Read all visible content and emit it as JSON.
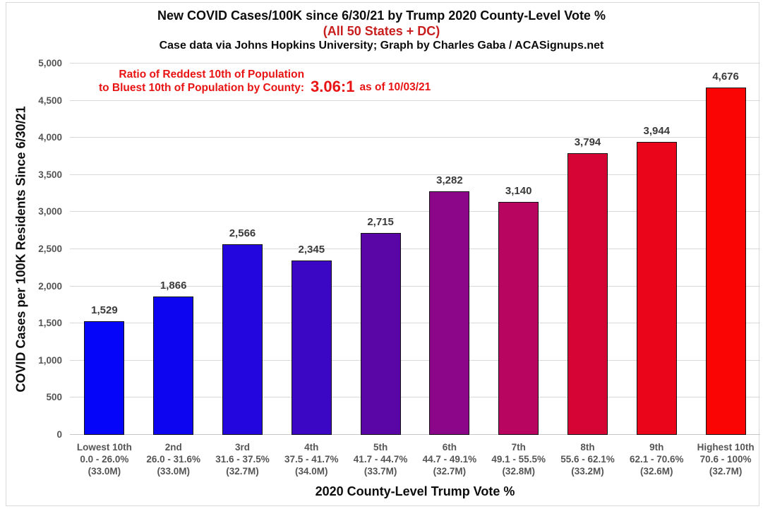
{
  "title": "New COVID Cases/100K since 6/30/21 by Trump 2020 County-Level Vote %",
  "subtitle": "(All 50 States + DC)",
  "credit": "Case data via Johns Hopkins University; Graph by Charles Gaba / ACASignups.net",
  "annotation": {
    "line1": "Ratio of Reddest 10th of Population",
    "line2": "to Bluest 10th of Population by County:",
    "ratio": "3.06:1",
    "asof": "as of 10/03/21"
  },
  "colors": {
    "subtitle_red": "#c81e1e",
    "annotation_red": "#e81414",
    "axis_label_gray": "#555555",
    "data_label_gray": "#3a3a3a",
    "gridline": "#d9d9d9",
    "bar_border": "#121212"
  },
  "chart_data": {
    "type": "bar",
    "title": "New COVID Cases/100K since 6/30/21 by Trump 2020 County-Level Vote %",
    "subtitle": "(All 50 States + DC)",
    "xlabel": "2020 County-Level Trump Vote %",
    "ylabel": "COVID Cases per 100K Residents Since 6/30/21",
    "ylim": [
      0,
      5000
    ],
    "ytick_step": 500,
    "ytick_labels": [
      "0",
      "500",
      "1,000",
      "1,500",
      "2,000",
      "2,500",
      "3,000",
      "3,500",
      "4,000",
      "4,500",
      "5,000"
    ],
    "grid": true,
    "legend": "none",
    "categories": [
      {
        "tier": "Lowest 10th",
        "range": "0.0 - 26.0%",
        "population": "(33.0M)"
      },
      {
        "tier": "2nd",
        "range": "26.0 - 31.6%",
        "population": "(33.0M)"
      },
      {
        "tier": "3rd",
        "range": "31.6 - 37.5%",
        "population": "(32.7M)"
      },
      {
        "tier": "4th",
        "range": "37.5 - 41.7%",
        "population": "(34.0M)"
      },
      {
        "tier": "5th",
        "range": "41.7 - 44.7%",
        "population": "(33.7M)"
      },
      {
        "tier": "6th",
        "range": "44.7 - 49.1%",
        "population": "(32.7M)"
      },
      {
        "tier": "7th",
        "range": "49.1 - 55.5%",
        "population": "(32.8M)"
      },
      {
        "tier": "8th",
        "range": "55.6 - 62.1%",
        "population": "(33.2M)"
      },
      {
        "tier": "9th",
        "range": "62.1 - 70.6%",
        "population": "(32.6M)"
      },
      {
        "tier": "Highest 10th",
        "range": "70.6 - 100%",
        "population": "(32.7M)"
      }
    ],
    "values": [
      1529,
      1866,
      2566,
      2345,
      2715,
      3282,
      3140,
      3794,
      3944,
      4676
    ],
    "value_labels": [
      "1,529",
      "1,866",
      "2,566",
      "2,345",
      "2,715",
      "3,282",
      "3,140",
      "3,794",
      "3,944",
      "4,676"
    ],
    "bar_colors": [
      "#0505fa",
      "#0e05f0",
      "#2306dd",
      "#3b06c4",
      "#5a06a6",
      "#8c0689",
      "#b80560",
      "#d60434",
      "#ea051b",
      "#fb0404"
    ]
  }
}
